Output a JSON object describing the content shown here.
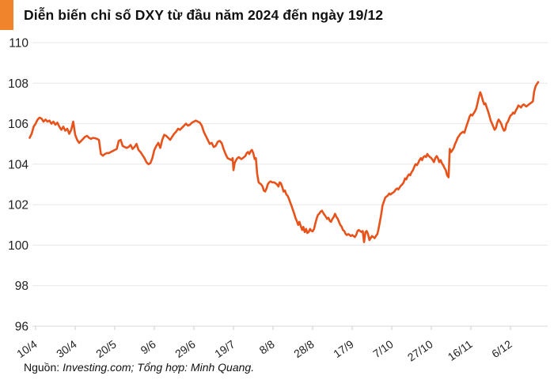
{
  "header": {
    "title": "Diễn biến chỉ số DXY từ đầu năm 2024 đến ngày 19/12",
    "accent_color": "#F0842C"
  },
  "footer": {
    "source_label": "Nguồn:",
    "source_text": "Investing.com; Tổng hợp: Minh Quang."
  },
  "chart_data": {
    "type": "line",
    "title": "Diễn biến chỉ số DXY từ đầu năm 2024 đến ngày 19/12",
    "xlabel": "",
    "ylabel": "",
    "legend": "none",
    "grid": true,
    "line_color": "#E8521B",
    "grid_color": "#E7E7E7",
    "baseline_color": "#D8D8D8",
    "tick_color": "#CFCFCF",
    "label_color": "#222222",
    "ylim": [
      96,
      110
    ],
    "y_ticks": [
      110,
      108,
      106,
      104,
      102,
      100,
      98,
      96
    ],
    "x_tick_days": [
      0,
      20,
      40,
      60,
      80,
      100,
      120,
      140,
      160,
      180,
      200,
      220,
      240
    ],
    "x_tick_labels": [
      "10/4",
      "30/4",
      "20/5",
      "9/6",
      "29/6",
      "19/7",
      "8/8",
      "28/8",
      "17/9",
      "7/10",
      "27/10",
      "16/11",
      "6/12"
    ],
    "x_domain_days": [
      -3,
      254
    ],
    "points": [
      [
        -3,
        105.3
      ],
      [
        -2,
        105.5
      ],
      [
        -1,
        105.85
      ],
      [
        0,
        106.0
      ],
      [
        1,
        106.2
      ],
      [
        2,
        106.3
      ],
      [
        3,
        106.25
      ],
      [
        4,
        106.1
      ],
      [
        5,
        106.2
      ],
      [
        6,
        106.1
      ],
      [
        7,
        106.15
      ],
      [
        8,
        106.0
      ],
      [
        9,
        106.1
      ],
      [
        10,
        105.95
      ],
      [
        11,
        106.05
      ],
      [
        12,
        105.85
      ],
      [
        13,
        105.7
      ],
      [
        14,
        105.85
      ],
      [
        15,
        105.65
      ],
      [
        16,
        105.75
      ],
      [
        17,
        105.5
      ],
      [
        18,
        105.7
      ],
      [
        19,
        106.1
      ],
      [
        20,
        105.45
      ],
      [
        21,
        105.2
      ],
      [
        22,
        105.05
      ],
      [
        23,
        105.15
      ],
      [
        24,
        105.25
      ],
      [
        25,
        105.35
      ],
      [
        26,
        105.4
      ],
      [
        27,
        105.3
      ],
      [
        28,
        105.25
      ],
      [
        29,
        105.3
      ],
      [
        30,
        105.28
      ],
      [
        31,
        105.25
      ],
      [
        32,
        105.2
      ],
      [
        33,
        104.5
      ],
      [
        34,
        104.42
      ],
      [
        35,
        104.5
      ],
      [
        36,
        104.55
      ],
      [
        37,
        104.55
      ],
      [
        38,
        104.6
      ],
      [
        39,
        104.65
      ],
      [
        40,
        104.7
      ],
      [
        41,
        104.75
      ],
      [
        42,
        105.15
      ],
      [
        43,
        105.2
      ],
      [
        44,
        104.9
      ],
      [
        45,
        104.85
      ],
      [
        46,
        104.8
      ],
      [
        47,
        104.85
      ],
      [
        48,
        104.95
      ],
      [
        49,
        104.75
      ],
      [
        50,
        104.85
      ],
      [
        51,
        105.0
      ],
      [
        52,
        104.7
      ],
      [
        53,
        104.6
      ],
      [
        54,
        104.45
      ],
      [
        55,
        104.3
      ],
      [
        56,
        104.1
      ],
      [
        57,
        104.0
      ],
      [
        58,
        104.05
      ],
      [
        59,
        104.3
      ],
      [
        60,
        104.7
      ],
      [
        61,
        104.9
      ],
      [
        62,
        105.05
      ],
      [
        63,
        104.8
      ],
      [
        64,
        105.2
      ],
      [
        65,
        105.45
      ],
      [
        66,
        105.4
      ],
      [
        67,
        105.3
      ],
      [
        68,
        105.2
      ],
      [
        69,
        105.35
      ],
      [
        70,
        105.5
      ],
      [
        71,
        105.6
      ],
      [
        72,
        105.75
      ],
      [
        73,
        105.7
      ],
      [
        74,
        105.8
      ],
      [
        75,
        105.9
      ],
      [
        76,
        106.0
      ],
      [
        77,
        105.9
      ],
      [
        78,
        105.95
      ],
      [
        79,
        106.05
      ],
      [
        80,
        106.1
      ],
      [
        81,
        106.15
      ],
      [
        82,
        106.1
      ],
      [
        83,
        106.05
      ],
      [
        84,
        105.9
      ],
      [
        85,
        105.6
      ],
      [
        86,
        105.4
      ],
      [
        87,
        105.2
      ],
      [
        88,
        105.0
      ],
      [
        89,
        105.05
      ],
      [
        90,
        104.85
      ],
      [
        91,
        104.9
      ],
      [
        92,
        105.1
      ],
      [
        93,
        105.15
      ],
      [
        94,
        105.05
      ],
      [
        95,
        104.75
      ],
      [
        96,
        104.5
      ],
      [
        97,
        104.3
      ],
      [
        98,
        104.25
      ],
      [
        99,
        104.2
      ],
      [
        99.6,
        104.3
      ],
      [
        100,
        103.7
      ],
      [
        100.6,
        104.05
      ],
      [
        101.3,
        104.2
      ],
      [
        102,
        104.3
      ],
      [
        102.7,
        104.35
      ],
      [
        103.3,
        104.3
      ],
      [
        104,
        104.25
      ],
      [
        104.7,
        104.3
      ],
      [
        105.3,
        104.35
      ],
      [
        106,
        104.4
      ],
      [
        106.7,
        104.55
      ],
      [
        107.3,
        104.6
      ],
      [
        108,
        104.5
      ],
      [
        108.7,
        104.65
      ],
      [
        109.3,
        104.7
      ],
      [
        110,
        104.55
      ],
      [
        110.7,
        104.25
      ],
      [
        111.3,
        104.3
      ],
      [
        112,
        103.5
      ],
      [
        112.7,
        103.1
      ],
      [
        113.3,
        103.05
      ],
      [
        114,
        103.0
      ],
      [
        114.7,
        102.9
      ],
      [
        115.3,
        102.7
      ],
      [
        116,
        102.65
      ],
      [
        116.7,
        102.8
      ],
      [
        117.3,
        103.0
      ],
      [
        118,
        103.1
      ],
      [
        118.7,
        103.15
      ],
      [
        119.6,
        103.1
      ],
      [
        120.6,
        103.1
      ],
      [
        121.3,
        103.05
      ],
      [
        122,
        103.0
      ],
      [
        122.7,
        102.9
      ],
      [
        123.3,
        103.1
      ],
      [
        124,
        103.05
      ],
      [
        124.7,
        102.85
      ],
      [
        125.3,
        102.65
      ],
      [
        126,
        102.7
      ],
      [
        126.7,
        102.5
      ],
      [
        127.3,
        102.45
      ],
      [
        128,
        102.3
      ],
      [
        128.7,
        102.1
      ],
      [
        129.3,
        101.95
      ],
      [
        130,
        101.75
      ],
      [
        130.7,
        101.55
      ],
      [
        131.3,
        101.35
      ],
      [
        132,
        101.2
      ],
      [
        132.7,
        101.0
      ],
      [
        133.3,
        101.15
      ],
      [
        134,
        100.95
      ],
      [
        134.7,
        100.75
      ],
      [
        135.3,
        100.9
      ],
      [
        136,
        100.65
      ],
      [
        136.7,
        100.8
      ],
      [
        137.3,
        100.6
      ],
      [
        138,
        100.65
      ],
      [
        138.7,
        100.8
      ],
      [
        139.3,
        100.72
      ],
      [
        140,
        100.68
      ],
      [
        140.7,
        100.8
      ],
      [
        141.3,
        101.05
      ],
      [
        142,
        101.3
      ],
      [
        142.7,
        101.5
      ],
      [
        143.3,
        101.55
      ],
      [
        144,
        101.65
      ],
      [
        144.7,
        101.7
      ],
      [
        145.3,
        101.6
      ],
      [
        146,
        101.5
      ],
      [
        146.7,
        101.4
      ],
      [
        147.3,
        101.3
      ],
      [
        148,
        101.35
      ],
      [
        148.7,
        101.2
      ],
      [
        149.3,
        101.15
      ],
      [
        150,
        101.3
      ],
      [
        150.7,
        101.4
      ],
      [
        151.3,
        101.55
      ],
      [
        152,
        101.4
      ],
      [
        152.7,
        101.3
      ],
      [
        153.3,
        101.15
      ],
      [
        154,
        101.0
      ],
      [
        154.7,
        100.9
      ],
      [
        155.3,
        100.75
      ],
      [
        156,
        100.7
      ],
      [
        156.7,
        100.55
      ],
      [
        157.3,
        100.5
      ],
      [
        158,
        100.55
      ],
      [
        158.7,
        100.5
      ],
      [
        159.3,
        100.45
      ],
      [
        160,
        100.5
      ],
      [
        160.7,
        100.45
      ],
      [
        161.3,
        100.4
      ],
      [
        162,
        100.5
      ],
      [
        162.7,
        100.7
      ],
      [
        163.3,
        100.75
      ],
      [
        164,
        100.7
      ],
      [
        164.7,
        100.65
      ],
      [
        165.3,
        100.7
      ],
      [
        166,
        100.15
      ],
      [
        166.7,
        100.65
      ],
      [
        167.3,
        100.7
      ],
      [
        168,
        100.55
      ],
      [
        168.7,
        100.25
      ],
      [
        169.3,
        100.35
      ],
      [
        170,
        100.45
      ],
      [
        170.7,
        100.4
      ],
      [
        171.3,
        100.35
      ],
      [
        172,
        100.45
      ],
      [
        172.7,
        100.55
      ],
      [
        173.3,
        100.8
      ],
      [
        174,
        101.15
      ],
      [
        174.7,
        101.55
      ],
      [
        175.3,
        101.95
      ],
      [
        176,
        102.15
      ],
      [
        176.7,
        102.35
      ],
      [
        177.3,
        102.4
      ],
      [
        178,
        102.45
      ],
      [
        178.7,
        102.55
      ],
      [
        179.3,
        102.5
      ],
      [
        180,
        102.55
      ],
      [
        180.7,
        102.6
      ],
      [
        181.3,
        102.65
      ],
      [
        182,
        102.75
      ],
      [
        182.7,
        102.8
      ],
      [
        183.3,
        102.75
      ],
      [
        184,
        102.85
      ],
      [
        184.7,
        102.95
      ],
      [
        185.3,
        103.0
      ],
      [
        186,
        103.1
      ],
      [
        186.7,
        103.3
      ],
      [
        187.3,
        103.25
      ],
      [
        188,
        103.4
      ],
      [
        188.7,
        103.5
      ],
      [
        189.3,
        103.45
      ],
      [
        190,
        103.6
      ],
      [
        190.7,
        103.7
      ],
      [
        191.3,
        103.85
      ],
      [
        192,
        104.0
      ],
      [
        192.7,
        103.95
      ],
      [
        193.3,
        104.05
      ],
      [
        194,
        104.2
      ],
      [
        194.7,
        104.3
      ],
      [
        195.3,
        104.2
      ],
      [
        196,
        104.35
      ],
      [
        196.7,
        104.4
      ],
      [
        197.3,
        104.35
      ],
      [
        198,
        104.5
      ],
      [
        198.7,
        104.4
      ],
      [
        199.3,
        104.35
      ],
      [
        200,
        104.3
      ],
      [
        200.7,
        104.2
      ],
      [
        201.3,
        104.1
      ],
      [
        202,
        104.3
      ],
      [
        202.7,
        104.4
      ],
      [
        203.3,
        104.3
      ],
      [
        204,
        104.1
      ],
      [
        204.7,
        104.2
      ],
      [
        205.3,
        104.05
      ],
      [
        206,
        103.95
      ],
      [
        206.7,
        103.8
      ],
      [
        207.3,
        103.7
      ],
      [
        208,
        103.45
      ],
      [
        208.7,
        103.35
      ],
      [
        209.3,
        104.75
      ],
      [
        210,
        104.6
      ],
      [
        210.7,
        104.7
      ],
      [
        211.3,
        104.8
      ],
      [
        212,
        105.0
      ],
      [
        212.7,
        105.15
      ],
      [
        213.3,
        105.3
      ],
      [
        214,
        105.4
      ],
      [
        214.7,
        105.5
      ],
      [
        215.3,
        105.55
      ],
      [
        216,
        105.6
      ],
      [
        216.7,
        105.55
      ],
      [
        217.3,
        105.75
      ],
      [
        218,
        105.95
      ],
      [
        218.7,
        106.15
      ],
      [
        219.3,
        106.35
      ],
      [
        220,
        106.45
      ],
      [
        220.7,
        106.4
      ],
      [
        221.3,
        106.5
      ],
      [
        222,
        106.6
      ],
      [
        222.7,
        106.75
      ],
      [
        223.3,
        107.0
      ],
      [
        224,
        107.3
      ],
      [
        224.7,
        107.55
      ],
      [
        225.3,
        107.4
      ],
      [
        226,
        107.15
      ],
      [
        226.7,
        106.95
      ],
      [
        227.3,
        107.0
      ],
      [
        228,
        106.8
      ],
      [
        228.7,
        106.6
      ],
      [
        229.3,
        106.4
      ],
      [
        230,
        106.15
      ],
      [
        230.7,
        106.0
      ],
      [
        231.3,
        105.85
      ],
      [
        232,
        105.7
      ],
      [
        232.7,
        105.8
      ],
      [
        233.3,
        106.05
      ],
      [
        234,
        106.2
      ],
      [
        234.7,
        106.1
      ],
      [
        235.3,
        106.0
      ],
      [
        236,
        105.8
      ],
      [
        236.7,
        105.65
      ],
      [
        237.3,
        105.7
      ],
      [
        238,
        106.0
      ],
      [
        238.7,
        106.1
      ],
      [
        239.3,
        106.25
      ],
      [
        240,
        106.4
      ],
      [
        240.7,
        106.45
      ],
      [
        241.3,
        106.55
      ],
      [
        242,
        106.5
      ],
      [
        242.7,
        106.65
      ],
      [
        243.3,
        106.75
      ],
      [
        244,
        106.9
      ],
      [
        244.7,
        106.85
      ],
      [
        245.3,
        106.8
      ],
      [
        246,
        106.9
      ],
      [
        246.7,
        106.95
      ],
      [
        247.3,
        106.9
      ],
      [
        248,
        106.85
      ],
      [
        248.7,
        106.9
      ],
      [
        249.3,
        106.95
      ],
      [
        250,
        107.0
      ],
      [
        250.7,
        107.05
      ],
      [
        251.3,
        107.1
      ],
      [
        252,
        107.6
      ],
      [
        252.7,
        107.85
      ],
      [
        253.3,
        107.95
      ],
      [
        254,
        108.05
      ]
    ]
  }
}
